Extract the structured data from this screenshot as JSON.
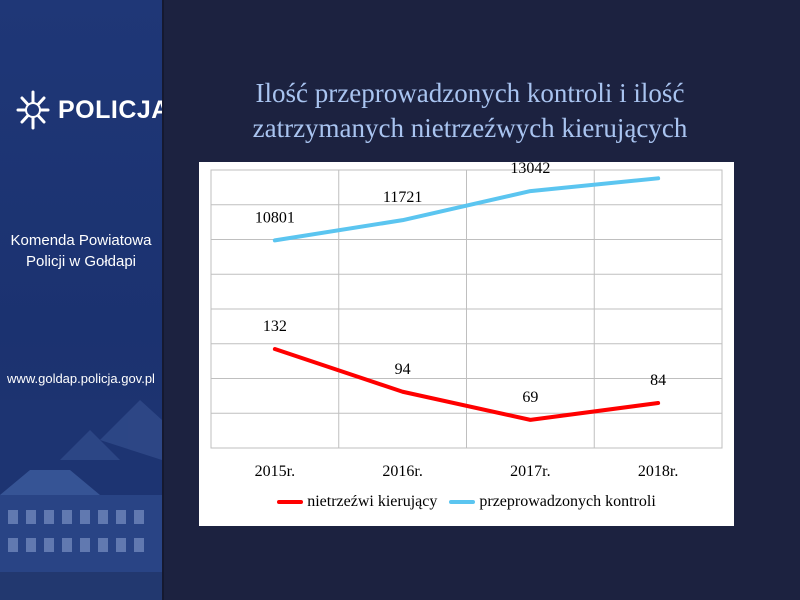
{
  "sidebar": {
    "logo_text": "POLICJA",
    "unit_line1": "Komenda Powiatowa",
    "unit_line2": "Policji w Gołdapi",
    "url": "www.goldap.policja.gov.pl"
  },
  "title": {
    "line1": "Ilość przeprowadzonych kontroli i ilość",
    "line2": "zatrzymanych nietrzeźwych kierujących"
  },
  "chart_data": {
    "type": "line",
    "categories": [
      "2015r.",
      "2016r.",
      "2017r.",
      "2018r."
    ],
    "series": [
      {
        "name": "nietrzeźwi kierujący",
        "values": [
          132,
          94,
          69,
          84
        ],
        "color": "#ff0000"
      },
      {
        "name": "przeprowadzonych kontroli",
        "values": [
          10801,
          11721,
          13042,
          13622
        ],
        "color": "#5bc5f0"
      }
    ],
    "grid": true,
    "legend_position": "bottom"
  },
  "colors": {
    "background": "#1c2240",
    "sidebar": "#1f3777",
    "title": "#a9c4f0",
    "panel": "#ffffff"
  }
}
